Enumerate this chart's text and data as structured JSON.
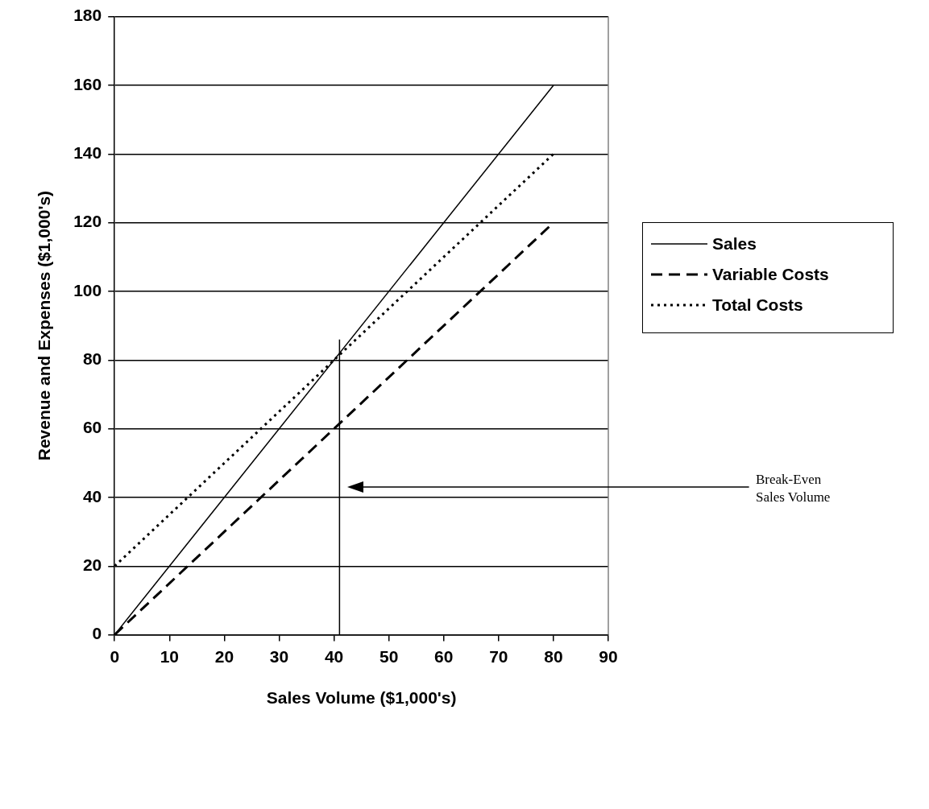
{
  "chart_data": {
    "type": "line",
    "xlabel": "Sales Volume ($1,000's)",
    "ylabel": "Revenue and Expenses ($1,000's)",
    "xlim": [
      0,
      90
    ],
    "xticks": [
      0,
      10,
      20,
      30,
      40,
      50,
      60,
      70,
      80,
      90
    ],
    "ylim": [
      0,
      180
    ],
    "yticks": [
      0,
      20,
      40,
      60,
      80,
      100,
      120,
      140,
      160,
      180
    ],
    "grid": "y",
    "legend": "right",
    "marker": "none",
    "series": [
      {
        "name": "Sales",
        "color": "#000000",
        "line_style": "solid",
        "x": [
          0,
          80
        ],
        "values": [
          0,
          160
        ]
      },
      {
        "name": "Variable Costs",
        "color": "#000000",
        "line_style": "dashed",
        "x": [
          0,
          80
        ],
        "values": [
          0,
          120
        ]
      },
      {
        "name": "Total Costs",
        "color": "#000000",
        "line_style": "dotted",
        "x": [
          0,
          80
        ],
        "values": [
          20,
          140
        ]
      },
      {
        "color": "#000000",
        "line_style": "solid",
        "x": [
          41,
          41
        ],
        "values": [
          0,
          86
        ]
      }
    ],
    "annotations": [
      "Break-Even Sales Volume"
    ]
  }
}
